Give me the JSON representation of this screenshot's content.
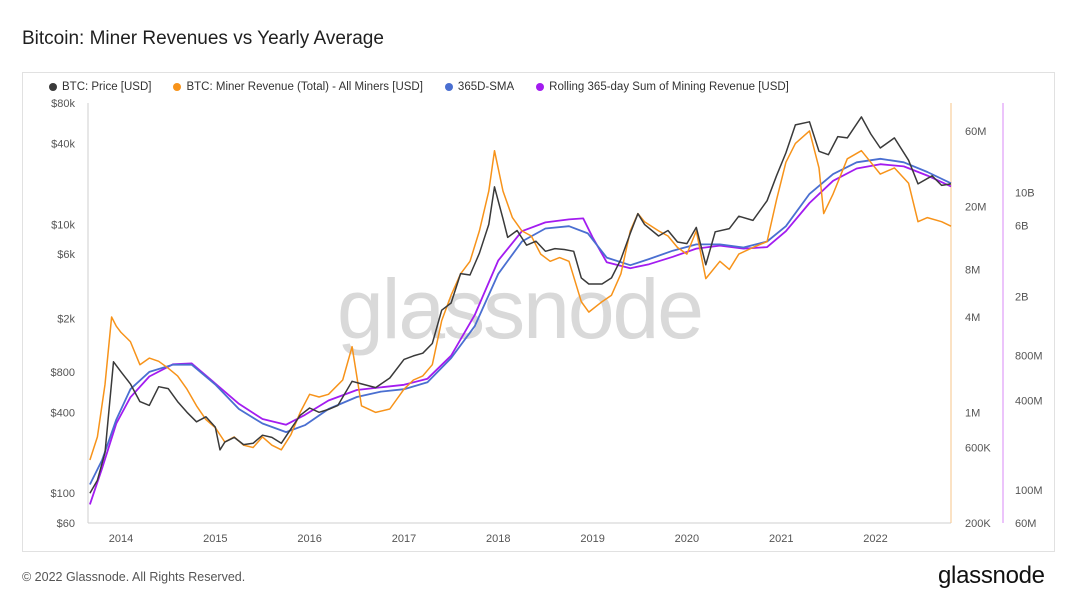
{
  "title": "Bitcoin: Miner Revenues vs Yearly Average",
  "footer": "© 2022 Glassnode. All Rights Reserved.",
  "logo": "glassnode",
  "watermark": "glassnode",
  "colors": {
    "price": "#3a3a3a",
    "revenue": "#f7931a",
    "sma": "#4a6fd1",
    "rolling": "#a31cf0"
  },
  "chart_data": {
    "type": "line",
    "xlabel": "",
    "ylabel": "",
    "x_ticks": [
      "2014",
      "2015",
      "2016",
      "2017",
      "2018",
      "2019",
      "2020",
      "2021",
      "2022"
    ],
    "x_range": [
      2013.65,
      2022.8
    ],
    "price_axis": {
      "scale": "log",
      "range": [
        60,
        80000
      ],
      "ticks": [
        {
          "v": 80000,
          "label": "$80k"
        },
        {
          "v": 40000,
          "label": "$40k"
        },
        {
          "v": 10000,
          "label": "$10k"
        },
        {
          "v": 6000,
          "label": "$6k"
        },
        {
          "v": 2000,
          "label": "$2k"
        },
        {
          "v": 800,
          "label": "$800"
        },
        {
          "v": 400,
          "label": "$400"
        },
        {
          "v": 100,
          "label": "$100"
        },
        {
          "v": 60,
          "label": "$60"
        }
      ]
    },
    "revenue_axis": {
      "scale": "log",
      "range": [
        200000,
        90000000
      ],
      "ticks": [
        {
          "v": 60000000,
          "label": "60M"
        },
        {
          "v": 20000000,
          "label": "20M"
        },
        {
          "v": 8000000,
          "label": "8M"
        },
        {
          "v": 4000000,
          "label": "4M"
        },
        {
          "v": 1000000,
          "label": "1M"
        },
        {
          "v": 600000,
          "label": "600K"
        },
        {
          "v": 200000,
          "label": "200K"
        }
      ]
    },
    "rolling_axis": {
      "scale": "log",
      "range": [
        60000000,
        40000000000
      ],
      "ticks": [
        {
          "v": 10000000000,
          "label": "10B"
        },
        {
          "v": 6000000000,
          "label": "6B"
        },
        {
          "v": 2000000000,
          "label": "2B"
        },
        {
          "v": 800000000,
          "label": "800M"
        },
        {
          "v": 400000000,
          "label": "400M"
        },
        {
          "v": 100000000,
          "label": "100M"
        },
        {
          "v": 60000000,
          "label": "60M"
        }
      ]
    },
    "series": [
      {
        "name": "BTC: Price [USD]",
        "axis": "price",
        "color": "#3a3a3a",
        "points": [
          [
            2013.67,
            100
          ],
          [
            2013.75,
            125
          ],
          [
            2013.83,
            200
          ],
          [
            2013.92,
            950
          ],
          [
            2014.0,
            800
          ],
          [
            2014.1,
            650
          ],
          [
            2014.2,
            480
          ],
          [
            2014.3,
            450
          ],
          [
            2014.4,
            620
          ],
          [
            2014.5,
            600
          ],
          [
            2014.6,
            480
          ],
          [
            2014.7,
            400
          ],
          [
            2014.8,
            340
          ],
          [
            2014.9,
            370
          ],
          [
            2015.0,
            310
          ],
          [
            2015.05,
            210
          ],
          [
            2015.1,
            240
          ],
          [
            2015.2,
            260
          ],
          [
            2015.3,
            230
          ],
          [
            2015.4,
            235
          ],
          [
            2015.5,
            270
          ],
          [
            2015.6,
            260
          ],
          [
            2015.7,
            235
          ],
          [
            2015.8,
            300
          ],
          [
            2015.9,
            380
          ],
          [
            2016.0,
            430
          ],
          [
            2016.1,
            400
          ],
          [
            2016.2,
            420
          ],
          [
            2016.3,
            450
          ],
          [
            2016.45,
            680
          ],
          [
            2016.55,
            650
          ],
          [
            2016.7,
            610
          ],
          [
            2016.85,
            720
          ],
          [
            2017.0,
            990
          ],
          [
            2017.1,
            1050
          ],
          [
            2017.2,
            1100
          ],
          [
            2017.3,
            1300
          ],
          [
            2017.4,
            2300
          ],
          [
            2017.5,
            2600
          ],
          [
            2017.6,
            4300
          ],
          [
            2017.7,
            4200
          ],
          [
            2017.8,
            6100
          ],
          [
            2017.9,
            10000
          ],
          [
            2017.96,
            19000
          ],
          [
            2018.05,
            11000
          ],
          [
            2018.1,
            8000
          ],
          [
            2018.2,
            9000
          ],
          [
            2018.3,
            7000
          ],
          [
            2018.4,
            7500
          ],
          [
            2018.5,
            6300
          ],
          [
            2018.6,
            6600
          ],
          [
            2018.7,
            6500
          ],
          [
            2018.8,
            6300
          ],
          [
            2018.88,
            4000
          ],
          [
            2018.96,
            3600
          ],
          [
            2019.1,
            3600
          ],
          [
            2019.2,
            4000
          ],
          [
            2019.3,
            5500
          ],
          [
            2019.4,
            8600
          ],
          [
            2019.48,
            12000
          ],
          [
            2019.55,
            10000
          ],
          [
            2019.7,
            8200
          ],
          [
            2019.8,
            9000
          ],
          [
            2019.9,
            7400
          ],
          [
            2020.0,
            7200
          ],
          [
            2020.1,
            9500
          ],
          [
            2020.2,
            5000
          ],
          [
            2020.3,
            8800
          ],
          [
            2020.45,
            9300
          ],
          [
            2020.55,
            11500
          ],
          [
            2020.7,
            10700
          ],
          [
            2020.85,
            15000
          ],
          [
            2020.95,
            23000
          ],
          [
            2021.05,
            34000
          ],
          [
            2021.15,
            55000
          ],
          [
            2021.3,
            58000
          ],
          [
            2021.4,
            35000
          ],
          [
            2021.5,
            33000
          ],
          [
            2021.6,
            45000
          ],
          [
            2021.7,
            44000
          ],
          [
            2021.85,
            63000
          ],
          [
            2021.95,
            47000
          ],
          [
            2022.05,
            37000
          ],
          [
            2022.2,
            44000
          ],
          [
            2022.35,
            30000
          ],
          [
            2022.45,
            20000
          ],
          [
            2022.6,
            23000
          ],
          [
            2022.7,
            19500
          ],
          [
            2022.8,
            20000
          ]
        ]
      },
      {
        "name": "BTC: Miner Revenue (Total) - All Miners [USD]",
        "axis": "revenue",
        "color": "#f7931a",
        "points": [
          [
            2013.67,
            500000
          ],
          [
            2013.75,
            700000
          ],
          [
            2013.83,
            1500000
          ],
          [
            2013.9,
            4000000
          ],
          [
            2013.95,
            3500000
          ],
          [
            2014.0,
            3200000
          ],
          [
            2014.1,
            2800000
          ],
          [
            2014.2,
            2000000
          ],
          [
            2014.3,
            2200000
          ],
          [
            2014.4,
            2100000
          ],
          [
            2014.5,
            1900000
          ],
          [
            2014.6,
            1700000
          ],
          [
            2014.7,
            1400000
          ],
          [
            2014.8,
            1100000
          ],
          [
            2014.9,
            900000
          ],
          [
            2015.0,
            800000
          ],
          [
            2015.1,
            650000
          ],
          [
            2015.2,
            700000
          ],
          [
            2015.3,
            620000
          ],
          [
            2015.4,
            600000
          ],
          [
            2015.5,
            700000
          ],
          [
            2015.6,
            620000
          ],
          [
            2015.7,
            580000
          ],
          [
            2015.8,
            720000
          ],
          [
            2015.9,
            1000000
          ],
          [
            2016.0,
            1300000
          ],
          [
            2016.1,
            1250000
          ],
          [
            2016.2,
            1300000
          ],
          [
            2016.35,
            1600000
          ],
          [
            2016.45,
            2600000
          ],
          [
            2016.55,
            1100000
          ],
          [
            2016.7,
            1000000
          ],
          [
            2016.85,
            1050000
          ],
          [
            2017.0,
            1400000
          ],
          [
            2017.1,
            1600000
          ],
          [
            2017.2,
            1700000
          ],
          [
            2017.3,
            2000000
          ],
          [
            2017.4,
            3800000
          ],
          [
            2017.5,
            5500000
          ],
          [
            2017.6,
            7500000
          ],
          [
            2017.7,
            9000000
          ],
          [
            2017.8,
            14000000
          ],
          [
            2017.9,
            25000000
          ],
          [
            2017.96,
            45000000
          ],
          [
            2018.05,
            25000000
          ],
          [
            2018.15,
            17000000
          ],
          [
            2018.25,
            14000000
          ],
          [
            2018.35,
            13000000
          ],
          [
            2018.45,
            10000000
          ],
          [
            2018.55,
            9000000
          ],
          [
            2018.65,
            9500000
          ],
          [
            2018.75,
            9000000
          ],
          [
            2018.88,
            5000000
          ],
          [
            2018.96,
            4300000
          ],
          [
            2019.1,
            5000000
          ],
          [
            2019.2,
            5500000
          ],
          [
            2019.3,
            7500000
          ],
          [
            2019.4,
            14000000
          ],
          [
            2019.48,
            18000000
          ],
          [
            2019.55,
            16000000
          ],
          [
            2019.7,
            14000000
          ],
          [
            2019.8,
            13000000
          ],
          [
            2019.9,
            11000000
          ],
          [
            2020.0,
            10000000
          ],
          [
            2020.1,
            14000000
          ],
          [
            2020.2,
            7000000
          ],
          [
            2020.35,
            9000000
          ],
          [
            2020.45,
            8000000
          ],
          [
            2020.55,
            10000000
          ],
          [
            2020.7,
            11000000
          ],
          [
            2020.85,
            12000000
          ],
          [
            2020.95,
            22000000
          ],
          [
            2021.05,
            38000000
          ],
          [
            2021.15,
            50000000
          ],
          [
            2021.3,
            60000000
          ],
          [
            2021.4,
            35000000
          ],
          [
            2021.45,
            18000000
          ],
          [
            2021.55,
            24000000
          ],
          [
            2021.7,
            40000000
          ],
          [
            2021.85,
            45000000
          ],
          [
            2021.95,
            38000000
          ],
          [
            2022.05,
            32000000
          ],
          [
            2022.2,
            35000000
          ],
          [
            2022.35,
            28000000
          ],
          [
            2022.45,
            16000000
          ],
          [
            2022.55,
            17000000
          ],
          [
            2022.7,
            16000000
          ],
          [
            2022.8,
            15000000
          ]
        ]
      },
      {
        "name": "365D-SMA",
        "axis": "revenue",
        "color": "#4a6fd1",
        "points": [
          [
            2013.67,
            350000
          ],
          [
            2013.8,
            500000
          ],
          [
            2013.95,
            900000
          ],
          [
            2014.1,
            1400000
          ],
          [
            2014.3,
            1800000
          ],
          [
            2014.55,
            2000000
          ],
          [
            2014.75,
            2000000
          ],
          [
            2015.0,
            1500000
          ],
          [
            2015.25,
            1050000
          ],
          [
            2015.5,
            850000
          ],
          [
            2015.75,
            750000
          ],
          [
            2015.95,
            830000
          ],
          [
            2016.2,
            1050000
          ],
          [
            2016.5,
            1250000
          ],
          [
            2016.75,
            1350000
          ],
          [
            2017.0,
            1400000
          ],
          [
            2017.25,
            1550000
          ],
          [
            2017.5,
            2200000
          ],
          [
            2017.75,
            3500000
          ],
          [
            2018.0,
            7500000
          ],
          [
            2018.25,
            12000000
          ],
          [
            2018.5,
            14500000
          ],
          [
            2018.75,
            15000000
          ],
          [
            2018.95,
            13500000
          ],
          [
            2019.15,
            9500000
          ],
          [
            2019.4,
            8500000
          ],
          [
            2019.6,
            9300000
          ],
          [
            2019.85,
            10500000
          ],
          [
            2020.1,
            11500000
          ],
          [
            2020.35,
            11500000
          ],
          [
            2020.6,
            11000000
          ],
          [
            2020.85,
            12000000
          ],
          [
            2021.05,
            15000000
          ],
          [
            2021.3,
            24000000
          ],
          [
            2021.55,
            32000000
          ],
          [
            2021.8,
            38000000
          ],
          [
            2022.05,
            40000000
          ],
          [
            2022.3,
            38000000
          ],
          [
            2022.55,
            33000000
          ],
          [
            2022.8,
            28000000
          ]
        ]
      },
      {
        "name": "Rolling 365-day Sum of Mining Revenue [USD]",
        "axis": "rolling",
        "color": "#a31cf0",
        "points": [
          [
            2013.67,
            80000000
          ],
          [
            2013.8,
            140000000
          ],
          [
            2013.95,
            280000000
          ],
          [
            2014.1,
            420000000
          ],
          [
            2014.3,
            580000000
          ],
          [
            2014.55,
            700000000
          ],
          [
            2014.75,
            710000000
          ],
          [
            2015.0,
            520000000
          ],
          [
            2015.25,
            380000000
          ],
          [
            2015.5,
            300000000
          ],
          [
            2015.75,
            275000000
          ],
          [
            2015.95,
            320000000
          ],
          [
            2016.2,
            400000000
          ],
          [
            2016.5,
            470000000
          ],
          [
            2016.75,
            490000000
          ],
          [
            2017.0,
            510000000
          ],
          [
            2017.25,
            560000000
          ],
          [
            2017.5,
            800000000
          ],
          [
            2017.75,
            1500000000
          ],
          [
            2018.0,
            3500000000
          ],
          [
            2018.25,
            5500000000
          ],
          [
            2018.5,
            6300000000
          ],
          [
            2018.75,
            6600000000
          ],
          [
            2018.9,
            6700000000
          ],
          [
            2019.0,
            5000000000
          ],
          [
            2019.15,
            3400000000
          ],
          [
            2019.4,
            3100000000
          ],
          [
            2019.6,
            3300000000
          ],
          [
            2019.85,
            3700000000
          ],
          [
            2020.1,
            4200000000
          ],
          [
            2020.35,
            4400000000
          ],
          [
            2020.6,
            4200000000
          ],
          [
            2020.85,
            4300000000
          ],
          [
            2021.05,
            5500000000
          ],
          [
            2021.3,
            8500000000
          ],
          [
            2021.55,
            12000000000
          ],
          [
            2021.8,
            14500000000
          ],
          [
            2022.05,
            15500000000
          ],
          [
            2022.3,
            15000000000
          ],
          [
            2022.55,
            13000000000
          ],
          [
            2022.8,
            11000000000
          ]
        ]
      }
    ]
  }
}
